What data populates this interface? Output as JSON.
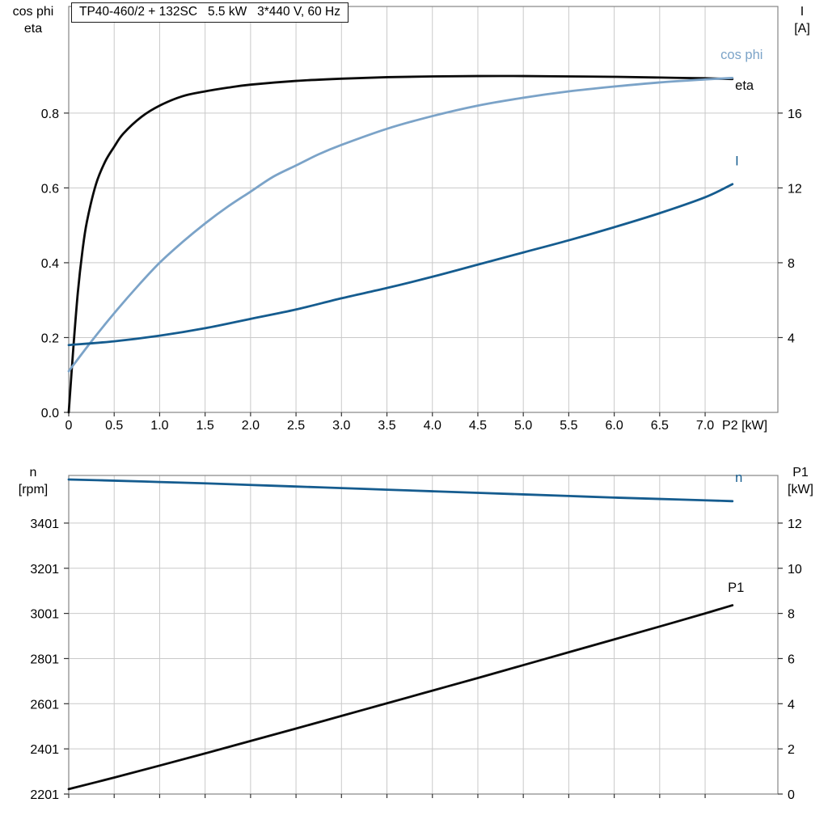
{
  "title": "TP40-460/2 + 132SC   5.5 kW   3*440 V, 60 Hz",
  "colors": {
    "black_curve": "#0a0a0a",
    "light_blue": "#7ba3c8",
    "dark_blue": "#155c8f",
    "grid": "#c9c9c9",
    "border": "#858585",
    "tick": "#333333",
    "text": "#000000",
    "background": "#ffffff"
  },
  "chart_data": [
    {
      "type": "line",
      "name": "motor-efficiency-chart",
      "title": "TP40-460/2 + 132SC   5.5 kW   3*440 V, 60 Hz",
      "grid": true,
      "legend_position": "curve-end-labels",
      "x_axis": {
        "label": "P2 [kW]",
        "min": 0,
        "max": 7.8,
        "tick_values": [
          0,
          0.5,
          1.0,
          1.5,
          2.0,
          2.5,
          3.0,
          3.5,
          4.0,
          4.5,
          5.0,
          5.5,
          6.0,
          6.5,
          7.0
        ],
        "tick_labels": [
          "0",
          "0.5",
          "1.0",
          "1.5",
          "2.0",
          "2.5",
          "3.0",
          "3.5",
          "4.0",
          "4.5",
          "5.0",
          "5.5",
          "6.0",
          "6.5",
          "7.0"
        ]
      },
      "y_left": {
        "label_lines": [
          "cos phi",
          "eta"
        ],
        "min": 0,
        "max": 1.085,
        "tick_values": [
          0.0,
          0.2,
          0.4,
          0.6,
          0.8
        ],
        "tick_labels": [
          "0.0",
          "0.2",
          "0.4",
          "0.6",
          "0.8"
        ]
      },
      "y_right": {
        "label_lines": [
          "I",
          "[A]"
        ],
        "min": 0,
        "max": 21.7,
        "tick_values": [
          4,
          8,
          12,
          16
        ],
        "tick_labels": [
          "4",
          "8",
          "12",
          "16"
        ]
      },
      "series": [
        {
          "name": "eta",
          "axis": "left",
          "color_key": "black_curve",
          "x": [
            0,
            0.05,
            0.1,
            0.15,
            0.2,
            0.3,
            0.4,
            0.5,
            0.6,
            0.8,
            1.0,
            1.25,
            1.5,
            1.75,
            2.0,
            2.5,
            3.0,
            3.5,
            4.0,
            4.5,
            5.0,
            5.5,
            6.0,
            6.5,
            7.0,
            7.3
          ],
          "y": [
            0,
            0.17,
            0.32,
            0.43,
            0.51,
            0.61,
            0.67,
            0.71,
            0.745,
            0.79,
            0.82,
            0.845,
            0.858,
            0.868,
            0.876,
            0.886,
            0.892,
            0.896,
            0.898,
            0.899,
            0.899,
            0.898,
            0.897,
            0.895,
            0.893,
            0.891
          ],
          "label": {
            "text": "eta",
            "x": 7.33,
            "y": 0.862
          }
        },
        {
          "name": "cos phi",
          "axis": "left",
          "color_key": "light_blue",
          "x": [
            0,
            0.25,
            0.5,
            0.75,
            1.0,
            1.25,
            1.5,
            1.75,
            2.0,
            2.25,
            2.5,
            2.75,
            3.0,
            3.5,
            4.0,
            4.5,
            5.0,
            5.5,
            6.0,
            6.5,
            7.0,
            7.3
          ],
          "y": [
            0.11,
            0.19,
            0.265,
            0.335,
            0.4,
            0.455,
            0.505,
            0.55,
            0.59,
            0.63,
            0.66,
            0.69,
            0.715,
            0.758,
            0.792,
            0.82,
            0.841,
            0.858,
            0.871,
            0.882,
            0.89,
            0.894
          ],
          "label": {
            "text": "cos phi",
            "x": 7.17,
            "y": 0.945
          }
        },
        {
          "name": "I",
          "axis": "right",
          "color_key": "dark_blue",
          "x": [
            0,
            0.5,
            1.0,
            1.5,
            2.0,
            2.5,
            3.0,
            3.5,
            4.0,
            4.5,
            5.0,
            5.5,
            6.0,
            6.5,
            7.0,
            7.3
          ],
          "y": [
            3.6,
            3.8,
            4.1,
            4.5,
            5.0,
            5.5,
            6.1,
            6.65,
            7.25,
            7.9,
            8.55,
            9.2,
            9.9,
            10.65,
            11.5,
            12.2
          ],
          "label": {
            "text": "I",
            "x": 7.33,
            "y": 13.2
          }
        }
      ]
    },
    {
      "type": "line",
      "name": "speed-power-chart",
      "grid": true,
      "legend_position": "curve-end-labels",
      "x_axis": {
        "label": "",
        "min": 0,
        "max": 7.8,
        "tick_values": [
          0,
          0.5,
          1.0,
          1.5,
          2.0,
          2.5,
          3.0,
          3.5,
          4.0,
          4.5,
          5.0,
          5.5,
          6.0,
          6.5,
          7.0
        ],
        "tick_labels": []
      },
      "y_left": {
        "label_lines": [
          "n",
          "[rpm]"
        ],
        "min": 2201,
        "max": 3612,
        "tick_values": [
          2201,
          2401,
          2601,
          2801,
          3001,
          3201,
          3401
        ],
        "tick_labels": [
          "2201",
          "2401",
          "2601",
          "2801",
          "3001",
          "3201",
          "3401"
        ]
      },
      "y_right": {
        "label_lines": [
          "P1",
          "[kW]"
        ],
        "min": 0,
        "max": 14.11,
        "tick_values": [
          0,
          2,
          4,
          6,
          8,
          10,
          12
        ],
        "tick_labels": [
          "0",
          "2",
          "4",
          "6",
          "8",
          "10",
          "12"
        ]
      },
      "series": [
        {
          "name": "n",
          "axis": "left",
          "color_key": "dark_blue",
          "x": [
            0,
            0.5,
            1.0,
            1.5,
            2.0,
            2.5,
            3.0,
            3.5,
            4.0,
            4.5,
            5.0,
            5.5,
            6.0,
            6.5,
            7.0,
            7.3
          ],
          "y": [
            3594,
            3589,
            3583,
            3577,
            3570,
            3563,
            3556,
            3549,
            3542,
            3535,
            3528,
            3521,
            3514,
            3508,
            3502,
            3498
          ],
          "label": {
            "text": "n",
            "x": 7.33,
            "y": 3584
          }
        },
        {
          "name": "P1",
          "axis": "right",
          "color_key": "black_curve",
          "x": [
            0,
            0.5,
            1.0,
            1.5,
            2.0,
            2.5,
            3.0,
            3.5,
            4.0,
            4.5,
            5.0,
            5.5,
            6.0,
            6.5,
            7.0,
            7.3
          ],
          "y": [
            0.22,
            0.73,
            1.26,
            1.8,
            2.35,
            2.9,
            3.46,
            4.02,
            4.58,
            5.14,
            5.71,
            6.28,
            6.85,
            7.42,
            8.0,
            8.36
          ],
          "label": {
            "text": "P1",
            "x": 7.25,
            "y": 8.95
          }
        }
      ]
    }
  ]
}
